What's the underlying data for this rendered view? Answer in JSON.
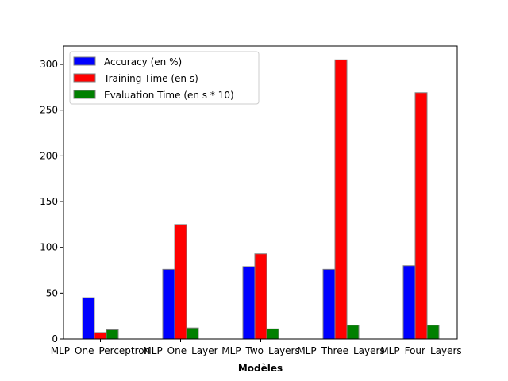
{
  "chart_data": {
    "type": "bar",
    "title": "",
    "xlabel": "Modèles",
    "ylabel": "",
    "categories": [
      "MLP_One_Perceptron",
      "MLP_One_Layer",
      "MLP_Two_Layers",
      "MLP_Three_Layers",
      "MLP_Four_Layers"
    ],
    "series": [
      {
        "name": "Accuracy (en %)",
        "color": "#0000ff",
        "values": [
          45,
          76,
          79,
          76,
          80
        ]
      },
      {
        "name": "Training Time (en s)",
        "color": "#ff0000",
        "values": [
          7,
          125,
          93,
          305,
          269
        ]
      },
      {
        "name": "Evaluation Time (en s * 10)",
        "color": "#008000",
        "values": [
          10,
          12,
          11,
          15,
          15
        ]
      }
    ],
    "ylim": [
      0,
      320
    ],
    "yticks": [
      0,
      50,
      100,
      150,
      200,
      250,
      300
    ],
    "grid": false,
    "legend_position": "top-left",
    "bar_edge_color": "#808080"
  }
}
